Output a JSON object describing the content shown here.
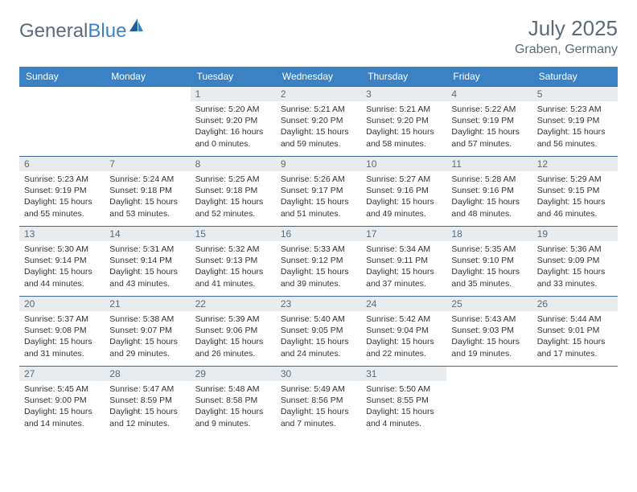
{
  "brand": {
    "part1": "General",
    "part2": "Blue"
  },
  "title": "July 2025",
  "location": "Graben, Germany",
  "colors": {
    "header_bg": "#3b82c4",
    "header_text": "#ffffff",
    "daynum_bg": "#e8ecef",
    "daynum_text": "#5a6b7b",
    "border": "#3b6a9a",
    "title_text": "#5a6b7b"
  },
  "day_headers": [
    "Sunday",
    "Monday",
    "Tuesday",
    "Wednesday",
    "Thursday",
    "Friday",
    "Saturday"
  ],
  "weeks": [
    [
      {
        "n": "",
        "sr": "",
        "ss": "",
        "dl": ""
      },
      {
        "n": "",
        "sr": "",
        "ss": "",
        "dl": ""
      },
      {
        "n": "1",
        "sr": "Sunrise: 5:20 AM",
        "ss": "Sunset: 9:20 PM",
        "dl": "Daylight: 16 hours and 0 minutes."
      },
      {
        "n": "2",
        "sr": "Sunrise: 5:21 AM",
        "ss": "Sunset: 9:20 PM",
        "dl": "Daylight: 15 hours and 59 minutes."
      },
      {
        "n": "3",
        "sr": "Sunrise: 5:21 AM",
        "ss": "Sunset: 9:20 PM",
        "dl": "Daylight: 15 hours and 58 minutes."
      },
      {
        "n": "4",
        "sr": "Sunrise: 5:22 AM",
        "ss": "Sunset: 9:19 PM",
        "dl": "Daylight: 15 hours and 57 minutes."
      },
      {
        "n": "5",
        "sr": "Sunrise: 5:23 AM",
        "ss": "Sunset: 9:19 PM",
        "dl": "Daylight: 15 hours and 56 minutes."
      }
    ],
    [
      {
        "n": "6",
        "sr": "Sunrise: 5:23 AM",
        "ss": "Sunset: 9:19 PM",
        "dl": "Daylight: 15 hours and 55 minutes."
      },
      {
        "n": "7",
        "sr": "Sunrise: 5:24 AM",
        "ss": "Sunset: 9:18 PM",
        "dl": "Daylight: 15 hours and 53 minutes."
      },
      {
        "n": "8",
        "sr": "Sunrise: 5:25 AM",
        "ss": "Sunset: 9:18 PM",
        "dl": "Daylight: 15 hours and 52 minutes."
      },
      {
        "n": "9",
        "sr": "Sunrise: 5:26 AM",
        "ss": "Sunset: 9:17 PM",
        "dl": "Daylight: 15 hours and 51 minutes."
      },
      {
        "n": "10",
        "sr": "Sunrise: 5:27 AM",
        "ss": "Sunset: 9:16 PM",
        "dl": "Daylight: 15 hours and 49 minutes."
      },
      {
        "n": "11",
        "sr": "Sunrise: 5:28 AM",
        "ss": "Sunset: 9:16 PM",
        "dl": "Daylight: 15 hours and 48 minutes."
      },
      {
        "n": "12",
        "sr": "Sunrise: 5:29 AM",
        "ss": "Sunset: 9:15 PM",
        "dl": "Daylight: 15 hours and 46 minutes."
      }
    ],
    [
      {
        "n": "13",
        "sr": "Sunrise: 5:30 AM",
        "ss": "Sunset: 9:14 PM",
        "dl": "Daylight: 15 hours and 44 minutes."
      },
      {
        "n": "14",
        "sr": "Sunrise: 5:31 AM",
        "ss": "Sunset: 9:14 PM",
        "dl": "Daylight: 15 hours and 43 minutes."
      },
      {
        "n": "15",
        "sr": "Sunrise: 5:32 AM",
        "ss": "Sunset: 9:13 PM",
        "dl": "Daylight: 15 hours and 41 minutes."
      },
      {
        "n": "16",
        "sr": "Sunrise: 5:33 AM",
        "ss": "Sunset: 9:12 PM",
        "dl": "Daylight: 15 hours and 39 minutes."
      },
      {
        "n": "17",
        "sr": "Sunrise: 5:34 AM",
        "ss": "Sunset: 9:11 PM",
        "dl": "Daylight: 15 hours and 37 minutes."
      },
      {
        "n": "18",
        "sr": "Sunrise: 5:35 AM",
        "ss": "Sunset: 9:10 PM",
        "dl": "Daylight: 15 hours and 35 minutes."
      },
      {
        "n": "19",
        "sr": "Sunrise: 5:36 AM",
        "ss": "Sunset: 9:09 PM",
        "dl": "Daylight: 15 hours and 33 minutes."
      }
    ],
    [
      {
        "n": "20",
        "sr": "Sunrise: 5:37 AM",
        "ss": "Sunset: 9:08 PM",
        "dl": "Daylight: 15 hours and 31 minutes."
      },
      {
        "n": "21",
        "sr": "Sunrise: 5:38 AM",
        "ss": "Sunset: 9:07 PM",
        "dl": "Daylight: 15 hours and 29 minutes."
      },
      {
        "n": "22",
        "sr": "Sunrise: 5:39 AM",
        "ss": "Sunset: 9:06 PM",
        "dl": "Daylight: 15 hours and 26 minutes."
      },
      {
        "n": "23",
        "sr": "Sunrise: 5:40 AM",
        "ss": "Sunset: 9:05 PM",
        "dl": "Daylight: 15 hours and 24 minutes."
      },
      {
        "n": "24",
        "sr": "Sunrise: 5:42 AM",
        "ss": "Sunset: 9:04 PM",
        "dl": "Daylight: 15 hours and 22 minutes."
      },
      {
        "n": "25",
        "sr": "Sunrise: 5:43 AM",
        "ss": "Sunset: 9:03 PM",
        "dl": "Daylight: 15 hours and 19 minutes."
      },
      {
        "n": "26",
        "sr": "Sunrise: 5:44 AM",
        "ss": "Sunset: 9:01 PM",
        "dl": "Daylight: 15 hours and 17 minutes."
      }
    ],
    [
      {
        "n": "27",
        "sr": "Sunrise: 5:45 AM",
        "ss": "Sunset: 9:00 PM",
        "dl": "Daylight: 15 hours and 14 minutes."
      },
      {
        "n": "28",
        "sr": "Sunrise: 5:47 AM",
        "ss": "Sunset: 8:59 PM",
        "dl": "Daylight: 15 hours and 12 minutes."
      },
      {
        "n": "29",
        "sr": "Sunrise: 5:48 AM",
        "ss": "Sunset: 8:58 PM",
        "dl": "Daylight: 15 hours and 9 minutes."
      },
      {
        "n": "30",
        "sr": "Sunrise: 5:49 AM",
        "ss": "Sunset: 8:56 PM",
        "dl": "Daylight: 15 hours and 7 minutes."
      },
      {
        "n": "31",
        "sr": "Sunrise: 5:50 AM",
        "ss": "Sunset: 8:55 PM",
        "dl": "Daylight: 15 hours and 4 minutes."
      },
      {
        "n": "",
        "sr": "",
        "ss": "",
        "dl": ""
      },
      {
        "n": "",
        "sr": "",
        "ss": "",
        "dl": ""
      }
    ]
  ]
}
